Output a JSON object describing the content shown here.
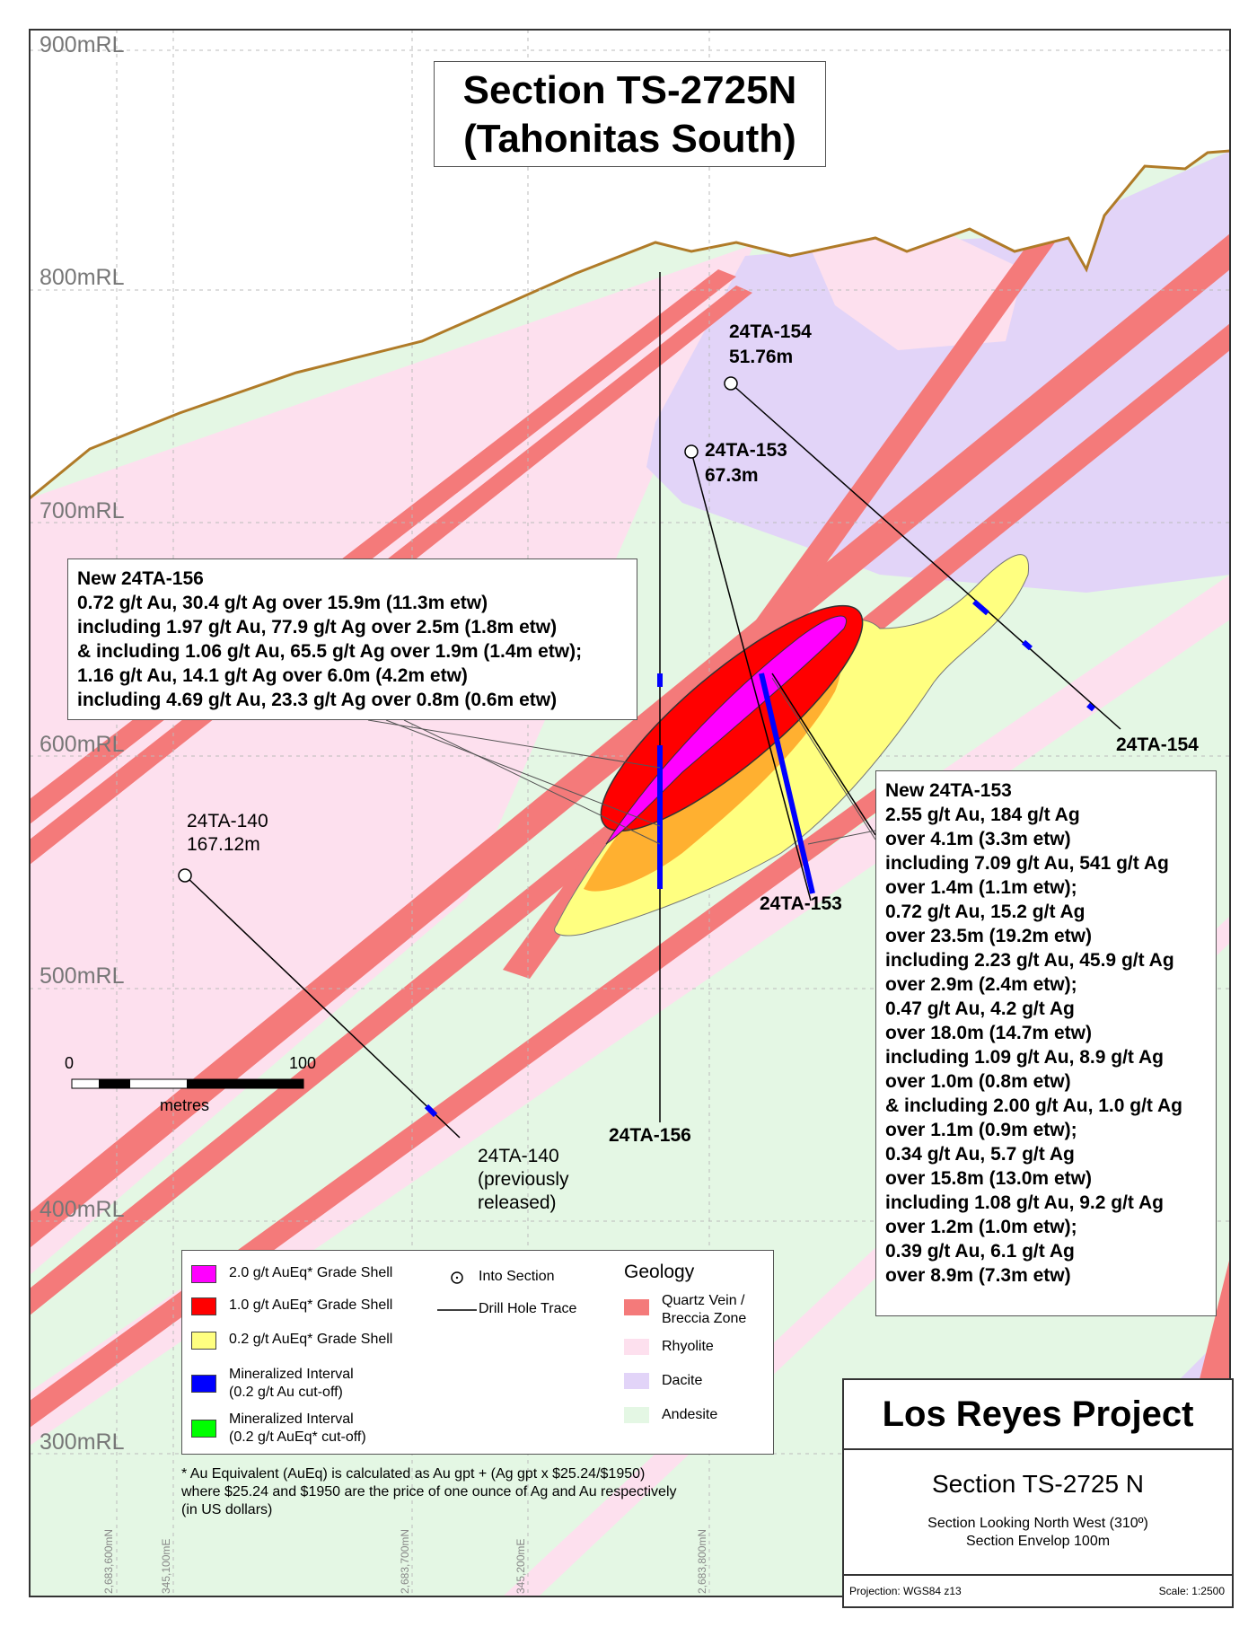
{
  "title": {
    "line1": "Section TS-2725N",
    "line2": "(Tahonitas South)"
  },
  "elevation_labels": [
    "900mRL",
    "800mRL",
    "700mRL",
    "600mRL",
    "500mRL",
    "400mRL",
    "300mRL"
  ],
  "grid_labels": [
    "2,683,600mN",
    "345,100mE",
    "2,683,700mN",
    "345,200mE",
    "2,683,800mN"
  ],
  "scale_bar": {
    "start": "0",
    "end": "100",
    "unit": "metres"
  },
  "drill_holes": {
    "h154": {
      "name": "24TA-154",
      "depth": "51.76m",
      "end_label": "24TA-154"
    },
    "h153": {
      "name": "24TA-153",
      "depth": "67.3m",
      "end_label": "24TA-153"
    },
    "h140": {
      "name": "24TA-140",
      "depth": "167.12m",
      "end_line1": "24TA-140",
      "end_line2": "(previously",
      "end_line3": "released)"
    },
    "h156": {
      "end_label": "24TA-156"
    }
  },
  "callout_156": [
    "New 24TA-156",
    "0.72 g/t Au, 30.4 g/t Ag over 15.9m (11.3m etw)",
    "including 1.97 g/t Au, 77.9 g/t Ag over 2.5m (1.8m etw)",
    "& including 1.06 g/t Au, 65.5 g/t Ag over 1.9m (1.4m etw);",
    "1.16 g/t Au, 14.1 g/t Ag over 6.0m (4.2m etw)",
    "including 4.69 g/t Au, 23.3 g/t Ag over 0.8m (0.6m etw)"
  ],
  "callout_153": [
    "New 24TA-153",
    "2.55 g/t Au, 184 g/t Ag",
    "over 4.1m (3.3m etw)",
    "including 7.09 g/t Au, 541 g/t Ag",
    "over 1.4m (1.1m etw);",
    "0.72 g/t Au, 15.2 g/t Ag",
    "over 23.5m (19.2m etw)",
    "including 2.23 g/t Au, 45.9 g/t Ag",
    "over 2.9m (2.4m etw);",
    "0.47 g/t Au, 4.2 g/t Ag",
    "over 18.0m (14.7m etw)",
    "including 1.09 g/t Au, 8.9 g/t Ag",
    "over 1.0m (0.8m etw)",
    "& including 2.00 g/t Au, 1.0 g/t Ag",
    "over 1.1m (0.9m etw);",
    "0.34 g/t Au, 5.7 g/t Ag",
    "over 15.8m (13.0m etw)",
    "including 1.08 g/t Au, 9.2 g/t Ag",
    "over 1.2m (1.0m etw);",
    "0.39 g/t Au, 6.1 g/t Ag",
    "over 8.9m (7.3m etw)"
  ],
  "legend": {
    "shell_2": "2.0 g/t AuEq* Grade Shell",
    "shell_1": "1.0 g/t AuEq* Grade Shell",
    "shell_02": "0.2 g/t AuEq* Grade Shell",
    "min_au_1": "Mineralized Interval",
    "min_au_2": "(0.2 g/t Au cut-off)",
    "min_aueq_1": "Mineralized Interval",
    "min_aueq_2": "(0.2 g/t AuEq* cut-off)",
    "into_section": "Into Section",
    "drill_trace": "Drill Hole Trace",
    "geology_title": "Geology",
    "quartz_1": "Quartz Vein /",
    "quartz_2": "Breccia Zone",
    "rhyolite": "Rhyolite",
    "dacite": "Dacite",
    "andesite": "Andesite"
  },
  "colors": {
    "shell_2": "#ff00ff",
    "shell_1": "#ff0000",
    "shell_02": "#ffff80",
    "shell_mid": "#ffb030",
    "min_au": "#0000ff",
    "min_aueq": "#00ff00",
    "quartz": "#f47a7a",
    "rhyolite": "#fde0ee",
    "dacite": "#e2d4f8",
    "andesite": "#e4f7e4",
    "topography": "#b07b28"
  },
  "note": [
    "* Au Equivalent (AuEq) is calculated as Au gpt + (Ag gpt x $25.24/$1950)",
    "where $25.24 and $1950 are the price of one ounce of Ag and Au respectively",
    "(in US dollars)"
  ],
  "project_box": {
    "name": "Los Reyes Project",
    "section": "Section TS-2725 N",
    "looking": "Section Looking North West (310º)",
    "envelope": "Section Envelop 100m",
    "projection": "Projection: WGS84 z13",
    "scale": "Scale: 1:2500"
  }
}
